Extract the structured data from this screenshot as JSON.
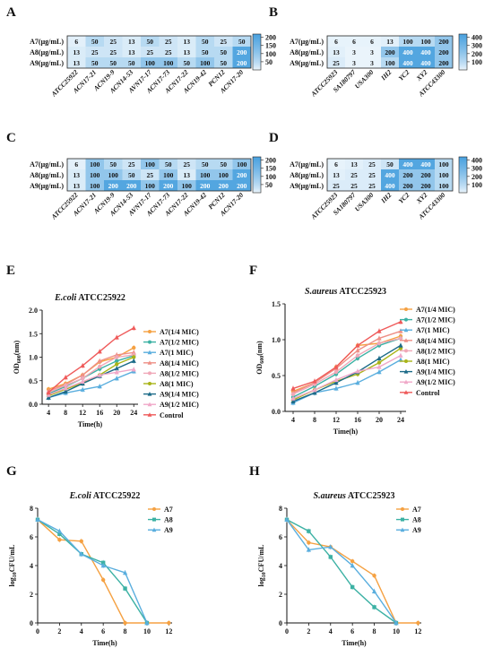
{
  "chart_data": [
    {
      "panel": "A",
      "type": "heatmap",
      "rows": [
        "A7(μg/mL)",
        "A8(μg/mL)",
        "A9(μg/mL)"
      ],
      "columns": [
        "ATCC25922",
        "ACN17-21",
        "ACN19-9",
        "ACN14-53",
        "AVN17-17",
        "ACN17-73",
        "ACN17-22",
        "ACN19-42",
        "PCN12",
        "ACN17-20"
      ],
      "values": [
        [
          6,
          50,
          25,
          13,
          50,
          25,
          13,
          50,
          25,
          50
        ],
        [
          13,
          25,
          25,
          13,
          25,
          25,
          13,
          50,
          50,
          200
        ],
        [
          13,
          50,
          50,
          50,
          100,
          100,
          50,
          100,
          50,
          200
        ]
      ],
      "colorbar_ticks": [
        50,
        100,
        150,
        200
      ],
      "vmin": 0,
      "vmax": 220
    },
    {
      "panel": "B",
      "type": "heatmap",
      "rows": [
        "A7(μg/mL)",
        "A8(μg/mL)",
        "A9(μg/mL)"
      ],
      "columns": [
        "ATCC25923",
        "SA180797",
        "USA300",
        "IH2",
        "YC2",
        "XY2",
        "ATCC43300"
      ],
      "values": [
        [
          6,
          6,
          6,
          13,
          100,
          100,
          200
        ],
        [
          13,
          3,
          3,
          200,
          400,
          400,
          200
        ],
        [
          25,
          3,
          3,
          100,
          400,
          400,
          200
        ]
      ],
      "colorbar_ticks": [
        100,
        200,
        300,
        400
      ],
      "vmin": 0,
      "vmax": 440
    },
    {
      "panel": "C",
      "type": "heatmap",
      "rows": [
        "A7(μg/mL)",
        "A8(μg/mL)",
        "A9(μg/mL)"
      ],
      "columns": [
        "ATCC25922",
        "ACN17-21",
        "ACN19-9",
        "ACN14-53",
        "AVN17-17",
        "ACN17-73",
        "ACN17-22",
        "ACN19-42",
        "PCN12",
        "ACN17-20"
      ],
      "values": [
        [
          6,
          100,
          50,
          25,
          100,
          50,
          25,
          50,
          50,
          100
        ],
        [
          13,
          100,
          100,
          50,
          25,
          100,
          13,
          100,
          100,
          200
        ],
        [
          13,
          100,
          200,
          200,
          100,
          200,
          100,
          200,
          200,
          200
        ]
      ],
      "colorbar_ticks": [
        50,
        100,
        150,
        200
      ],
      "vmin": 0,
      "vmax": 220
    },
    {
      "panel": "D",
      "type": "heatmap",
      "rows": [
        "A7(μg/mL)",
        "A8(μg/mL)",
        "A9(μg/mL)"
      ],
      "columns": [
        "ATCC25923",
        "SA180797",
        "USA300",
        "IH2",
        "YC2",
        "XY2",
        "ATCC43300"
      ],
      "values": [
        [
          6,
          13,
          25,
          50,
          400,
          400,
          100
        ],
        [
          13,
          25,
          25,
          400,
          200,
          200,
          100
        ],
        [
          25,
          25,
          25,
          400,
          200,
          200,
          100
        ]
      ],
      "colorbar_ticks": [
        100,
        200,
        300,
        400
      ],
      "vmin": 0,
      "vmax": 440
    },
    {
      "panel": "E",
      "type": "line",
      "title_italic": "E.coli",
      "title_rest": " ATCC25922",
      "xlabel": "Time(h)",
      "ylabel_main": "OD",
      "ylabel_sub": "600",
      "ylabel_end": "(nm)",
      "x": [
        4,
        8,
        12,
        16,
        20,
        24
      ],
      "xticks": [
        4,
        8,
        12,
        16,
        20,
        24
      ],
      "xlim": [
        2.5,
        25
      ],
      "ylim": [
        0,
        2.0
      ],
      "yticks": [
        "0.0",
        "0.5",
        "1.0",
        "1.5",
        "2.0"
      ],
      "series": [
        {
          "name": "A7(1/4 MIC)",
          "color": "#f5a142",
          "marker": "circle",
          "values": [
            0.32,
            0.44,
            0.62,
            0.9,
            1.0,
            1.2
          ]
        },
        {
          "name": "A7(1/2 MIC)",
          "color": "#3cb1a4",
          "marker": "circle",
          "values": [
            0.22,
            0.38,
            0.55,
            0.75,
            0.92,
            1.03
          ]
        },
        {
          "name": "A7(1 MIC)",
          "color": "#5aaede",
          "marker": "triangle",
          "values": [
            0.14,
            0.24,
            0.31,
            0.38,
            0.55,
            0.7
          ]
        },
        {
          "name": "A8(1/4 MIC)",
          "color": "#ee8f86",
          "marker": "triangle",
          "values": [
            0.28,
            0.42,
            0.62,
            0.92,
            1.05,
            1.1
          ]
        },
        {
          "name": "A8(1/2 MIC)",
          "color": "#f0a8b8",
          "marker": "circle",
          "values": [
            0.25,
            0.4,
            0.55,
            0.8,
            1.0,
            1.05
          ]
        },
        {
          "name": "A8(1 MIC)",
          "color": "#a9b418",
          "marker": "circle",
          "values": [
            0.18,
            0.32,
            0.45,
            0.62,
            0.85,
            1.0
          ]
        },
        {
          "name": "A9(1/4 MIC)",
          "color": "#1c6b88",
          "marker": "triangle",
          "values": [
            0.14,
            0.27,
            0.44,
            0.6,
            0.76,
            0.92
          ]
        },
        {
          "name": "A9(1/2 MIC)",
          "color": "#f0a8c8",
          "marker": "triangle",
          "values": [
            0.2,
            0.34,
            0.48,
            0.62,
            0.68,
            0.74
          ]
        },
        {
          "name": "Control",
          "color": "#ef5a5a",
          "marker": "triangle",
          "values": [
            0.25,
            0.57,
            0.82,
            1.12,
            1.42,
            1.62
          ]
        }
      ]
    },
    {
      "panel": "F",
      "type": "line",
      "title_italic": "S.aureus",
      "title_rest": " ATCC25923",
      "xlabel": "Time(h)",
      "ylabel_main": "OD",
      "ylabel_sub": "600",
      "ylabel_end": "(nm)",
      "x": [
        4,
        8,
        12,
        16,
        20,
        24
      ],
      "xticks": [
        4,
        8,
        12,
        16,
        20,
        24
      ],
      "xlim": [
        2.5,
        25
      ],
      "ylim": [
        0,
        1.5
      ],
      "yticks": [
        "0.0",
        "0.5",
        "1.0",
        "1.5"
      ],
      "series": [
        {
          "name": "A7(1/4 MIC)",
          "color": "#f5a142",
          "marker": "circle",
          "values": [
            0.28,
            0.4,
            0.62,
            0.92,
            0.95,
            1.05
          ]
        },
        {
          "name": "A7(1/2 MIC)",
          "color": "#3cb1a4",
          "marker": "circle",
          "values": [
            0.2,
            0.35,
            0.52,
            0.74,
            0.92,
            1.02
          ]
        },
        {
          "name": "A7(1 MIC)",
          "color": "#5aaede",
          "marker": "triangle",
          "values": [
            0.12,
            0.26,
            0.32,
            0.4,
            0.55,
            0.72
          ]
        },
        {
          "name": "A8(1/4 MIC)",
          "color": "#ee8f86",
          "marker": "triangle",
          "values": [
            0.26,
            0.4,
            0.6,
            0.85,
            1.02,
            1.12
          ]
        },
        {
          "name": "A8(1/2 MIC)",
          "color": "#f0a8b8",
          "marker": "circle",
          "values": [
            0.24,
            0.38,
            0.55,
            0.78,
            0.95,
            1.02
          ]
        },
        {
          "name": "A8(1 MIC)",
          "color": "#a9b418",
          "marker": "circle",
          "values": [
            0.16,
            0.3,
            0.42,
            0.52,
            0.68,
            0.88
          ]
        },
        {
          "name": "A9(1/4 MIC)",
          "color": "#1c6b88",
          "marker": "triangle",
          "values": [
            0.14,
            0.26,
            0.4,
            0.55,
            0.74,
            0.92
          ]
        },
        {
          "name": "A9(1/2 MIC)",
          "color": "#f0a8c8",
          "marker": "triangle",
          "values": [
            0.18,
            0.3,
            0.44,
            0.56,
            0.62,
            0.78
          ]
        },
        {
          "name": "Control",
          "color": "#ef5a5a",
          "marker": "triangle",
          "values": [
            0.32,
            0.42,
            0.62,
            0.92,
            1.12,
            1.25
          ]
        }
      ]
    },
    {
      "panel": "G",
      "type": "line",
      "title_italic": "E.coli",
      "title_rest": " ATCC25922",
      "xlabel": "Time(h)",
      "ylabel_main": "log",
      "ylabel_sub": "10",
      "ylabel_end": "CFU/mL",
      "x": [
        0,
        2,
        4,
        6,
        8,
        10,
        12
      ],
      "xticks": [
        0,
        2,
        4,
        6,
        8,
        10,
        12
      ],
      "xlim": [
        0,
        12.3
      ],
      "ylim": [
        0,
        8
      ],
      "yticks": [
        "0",
        "2",
        "4",
        "6",
        "8"
      ],
      "series": [
        {
          "name": "A7",
          "color": "#f5a142",
          "marker": "circle",
          "values": [
            7.2,
            5.8,
            5.7,
            3.0,
            0,
            0,
            0
          ]
        },
        {
          "name": "A8",
          "color": "#3cb1a4",
          "marker": "square",
          "values": [
            7.2,
            6.2,
            4.8,
            4.2,
            2.4,
            0,
            null
          ]
        },
        {
          "name": "A9",
          "color": "#5aaede",
          "marker": "triangle",
          "values": [
            7.2,
            6.4,
            4.8,
            4.0,
            3.5,
            0,
            null
          ]
        }
      ]
    },
    {
      "panel": "H",
      "type": "line",
      "title_italic": "S.aureus",
      "title_rest": " ATCC25923",
      "xlabel": "Time(h)",
      "ylabel_main": "log",
      "ylabel_sub": "10",
      "ylabel_end": "CFU/mL",
      "x": [
        0,
        2,
        4,
        6,
        8,
        10,
        12
      ],
      "xticks": [
        0,
        2,
        4,
        6,
        8,
        10,
        12
      ],
      "xlim": [
        0,
        12.3
      ],
      "ylim": [
        0,
        8
      ],
      "yticks": [
        "0",
        "2",
        "4",
        "6",
        "8"
      ],
      "series": [
        {
          "name": "A7",
          "color": "#f5a142",
          "marker": "circle",
          "values": [
            7.2,
            5.6,
            5.3,
            4.3,
            3.3,
            0,
            0
          ]
        },
        {
          "name": "A8",
          "color": "#3cb1a4",
          "marker": "square",
          "values": [
            7.2,
            6.4,
            4.6,
            2.5,
            1.1,
            0,
            null
          ]
        },
        {
          "name": "A9",
          "color": "#5aaede",
          "marker": "triangle",
          "values": [
            7.2,
            5.1,
            5.3,
            4.0,
            2.2,
            0,
            null
          ]
        }
      ]
    }
  ]
}
